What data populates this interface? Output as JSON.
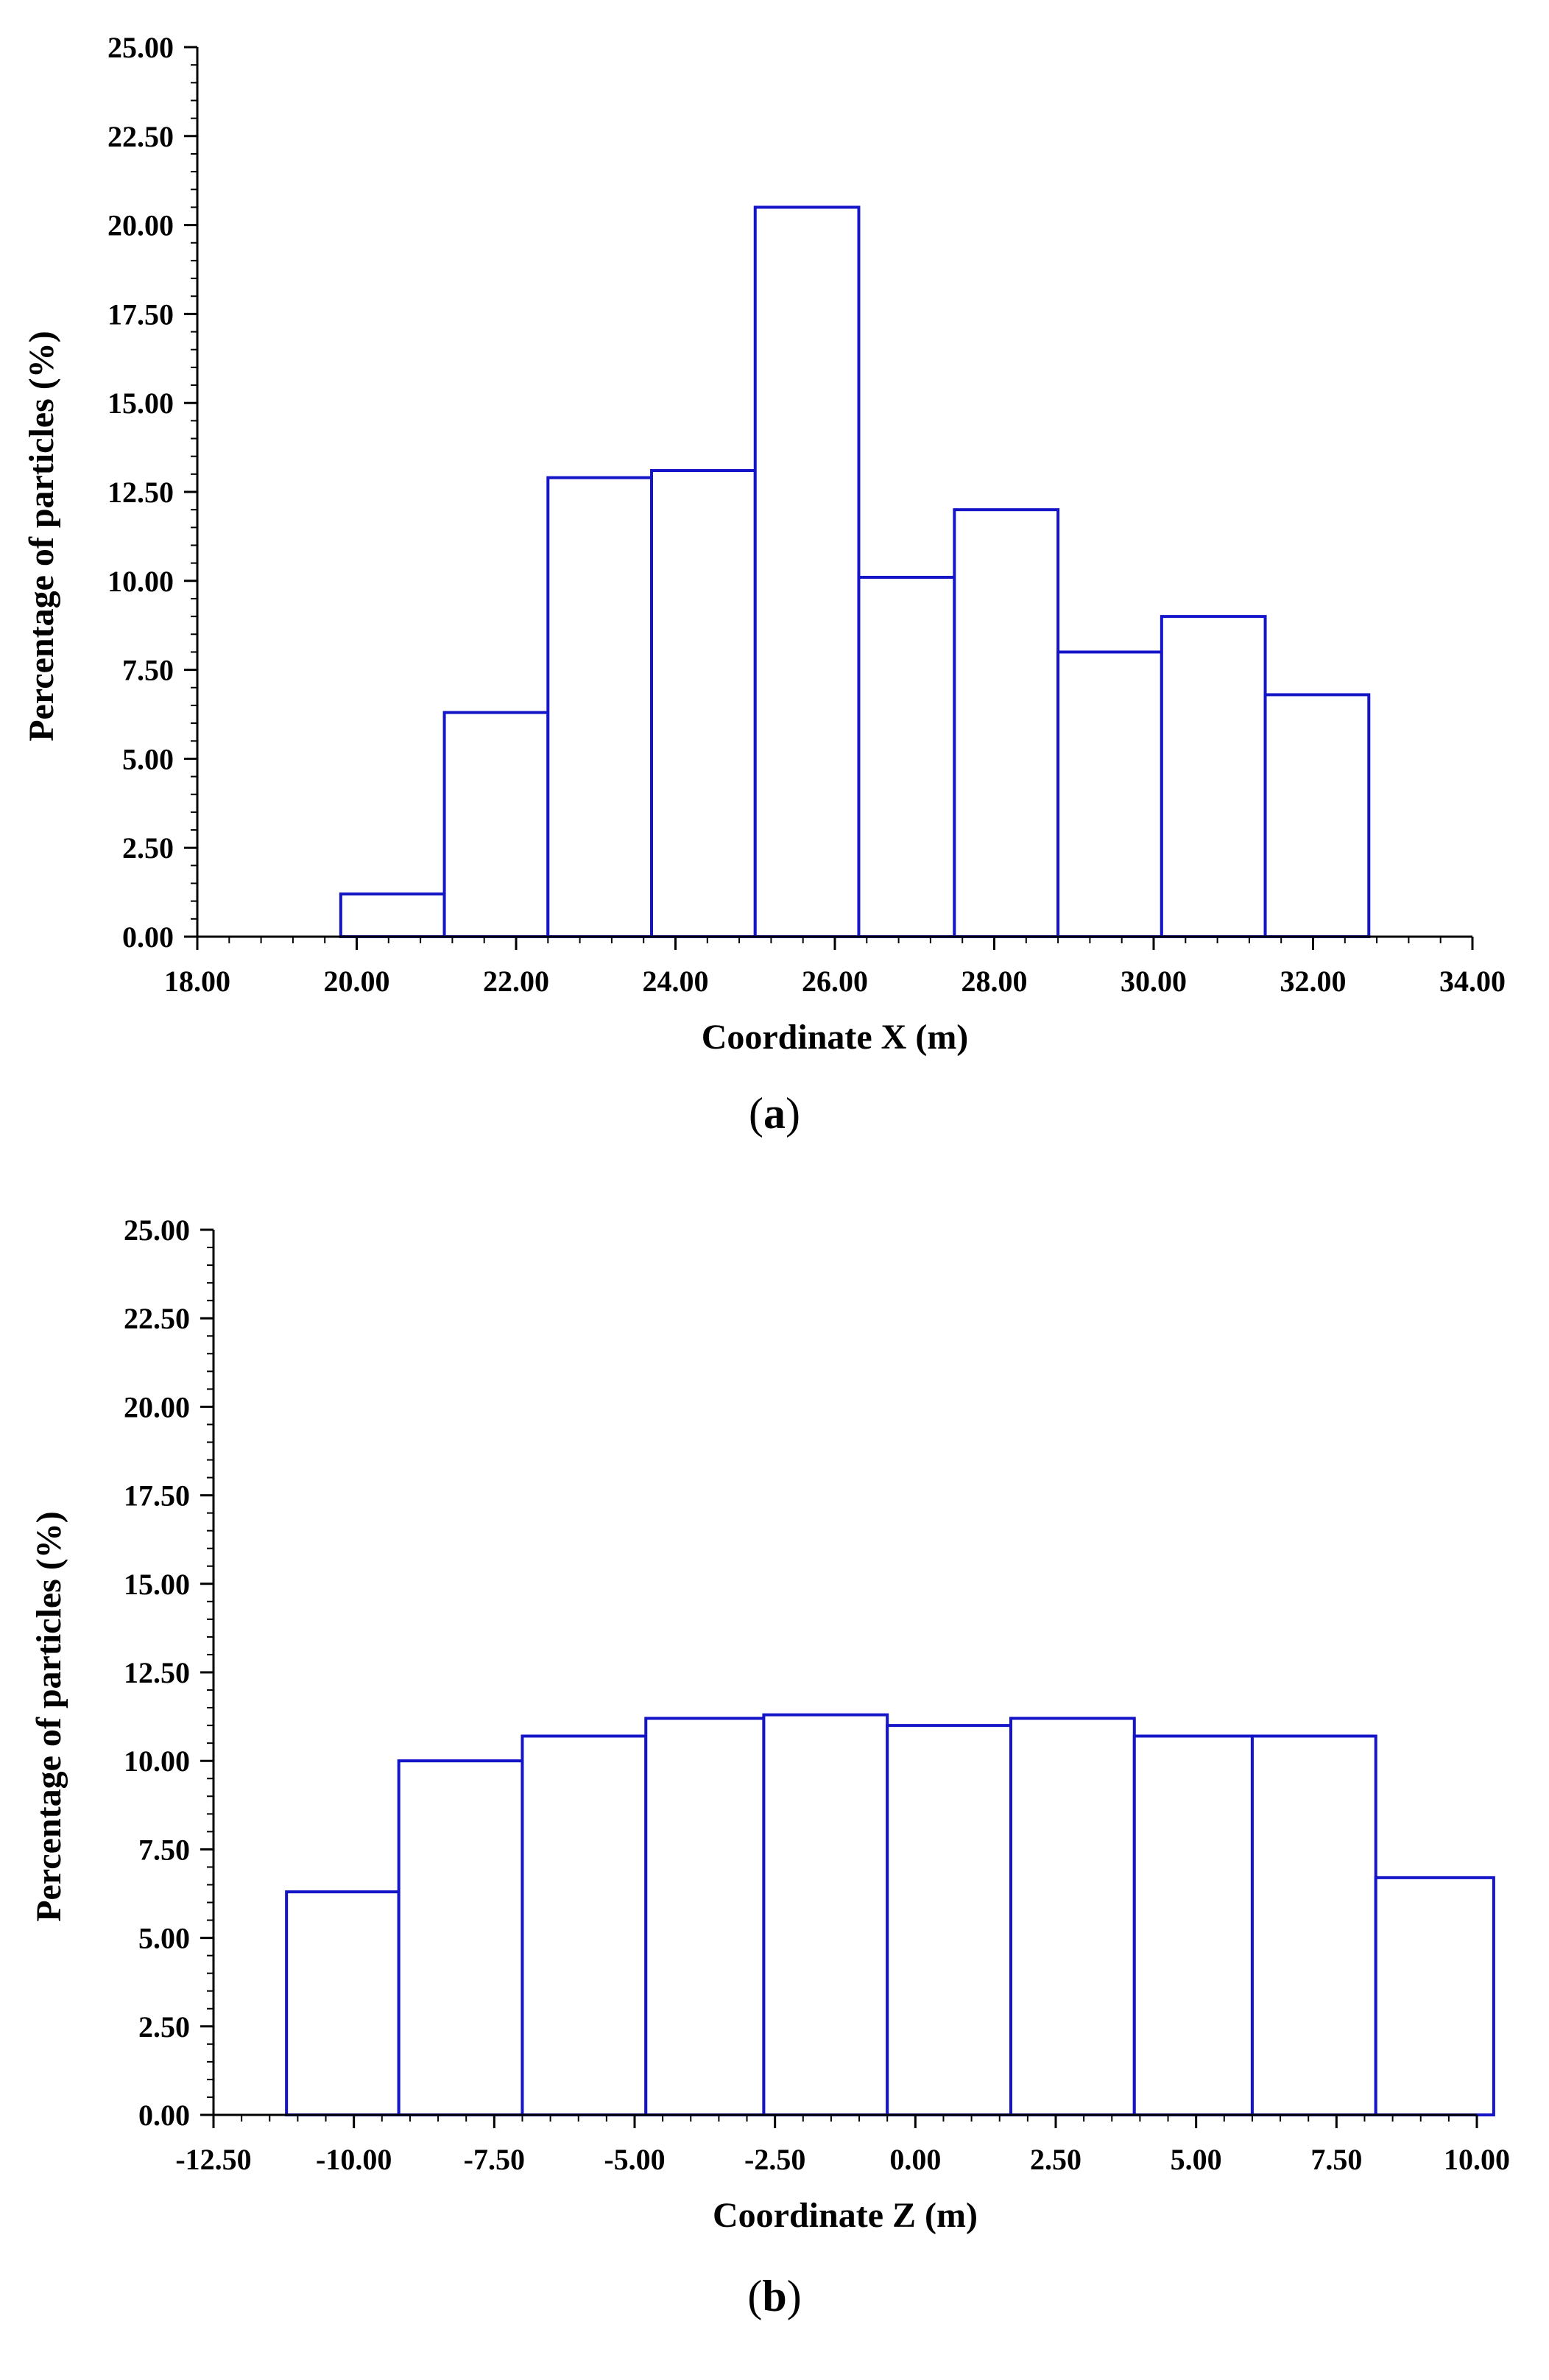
{
  "colors": {
    "bar_stroke": "#1515c8",
    "bar_fill": "#ffffff",
    "axis": "#000000",
    "text": "#000000"
  },
  "chart_data": [
    {
      "type": "bar",
      "panel_label": "a",
      "title": "",
      "xlabel": "Coordinate X (m)",
      "ylabel": "Percentage of particles (%)",
      "xlim": [
        18,
        34
      ],
      "ylim": [
        0,
        25
      ],
      "x_ticks": [
        "18.00",
        "20.00",
        "22.00",
        "24.00",
        "26.00",
        "28.00",
        "30.00",
        "32.00",
        "34.00"
      ],
      "y_ticks": [
        "0.00",
        "2.50",
        "5.00",
        "7.50",
        "10.00",
        "12.50",
        "15.00",
        "17.50",
        "20.00",
        "22.50",
        "25.00"
      ],
      "bin_edges": [
        19.8,
        21.1,
        22.4,
        23.7,
        25.0,
        26.3,
        27.5,
        28.8,
        30.1,
        31.4,
        32.7
      ],
      "values": [
        1.2,
        6.3,
        12.9,
        13.1,
        20.5,
        10.1,
        12.0,
        8.0,
        9.0,
        6.8
      ],
      "grid": false,
      "legend": "none"
    },
    {
      "type": "bar",
      "panel_label": "b",
      "title": "",
      "xlabel": "Coordinate Z (m)",
      "ylabel": "Percentage of particles (%)",
      "xlim": [
        -12.5,
        10
      ],
      "ylim": [
        0,
        25
      ],
      "x_ticks": [
        "-12.50",
        "-10.00",
        "-7.50",
        "-5.00",
        "-2.50",
        "0.00",
        "2.50",
        "5.00",
        "7.50",
        "10.00"
      ],
      "y_ticks": [
        "0.00",
        "2.50",
        "5.00",
        "7.50",
        "10.00",
        "12.50",
        "15.00",
        "17.50",
        "20.00",
        "22.50",
        "25.00"
      ],
      "bin_edges": [
        -11.2,
        -9.2,
        -7.0,
        -4.8,
        -2.7,
        -0.5,
        1.7,
        3.9,
        6.0,
        8.2,
        10.3
      ],
      "values": [
        6.3,
        10.0,
        10.7,
        11.2,
        11.3,
        11.0,
        11.2,
        10.7,
        10.7,
        6.7
      ],
      "grid": false,
      "legend": "none"
    }
  ]
}
